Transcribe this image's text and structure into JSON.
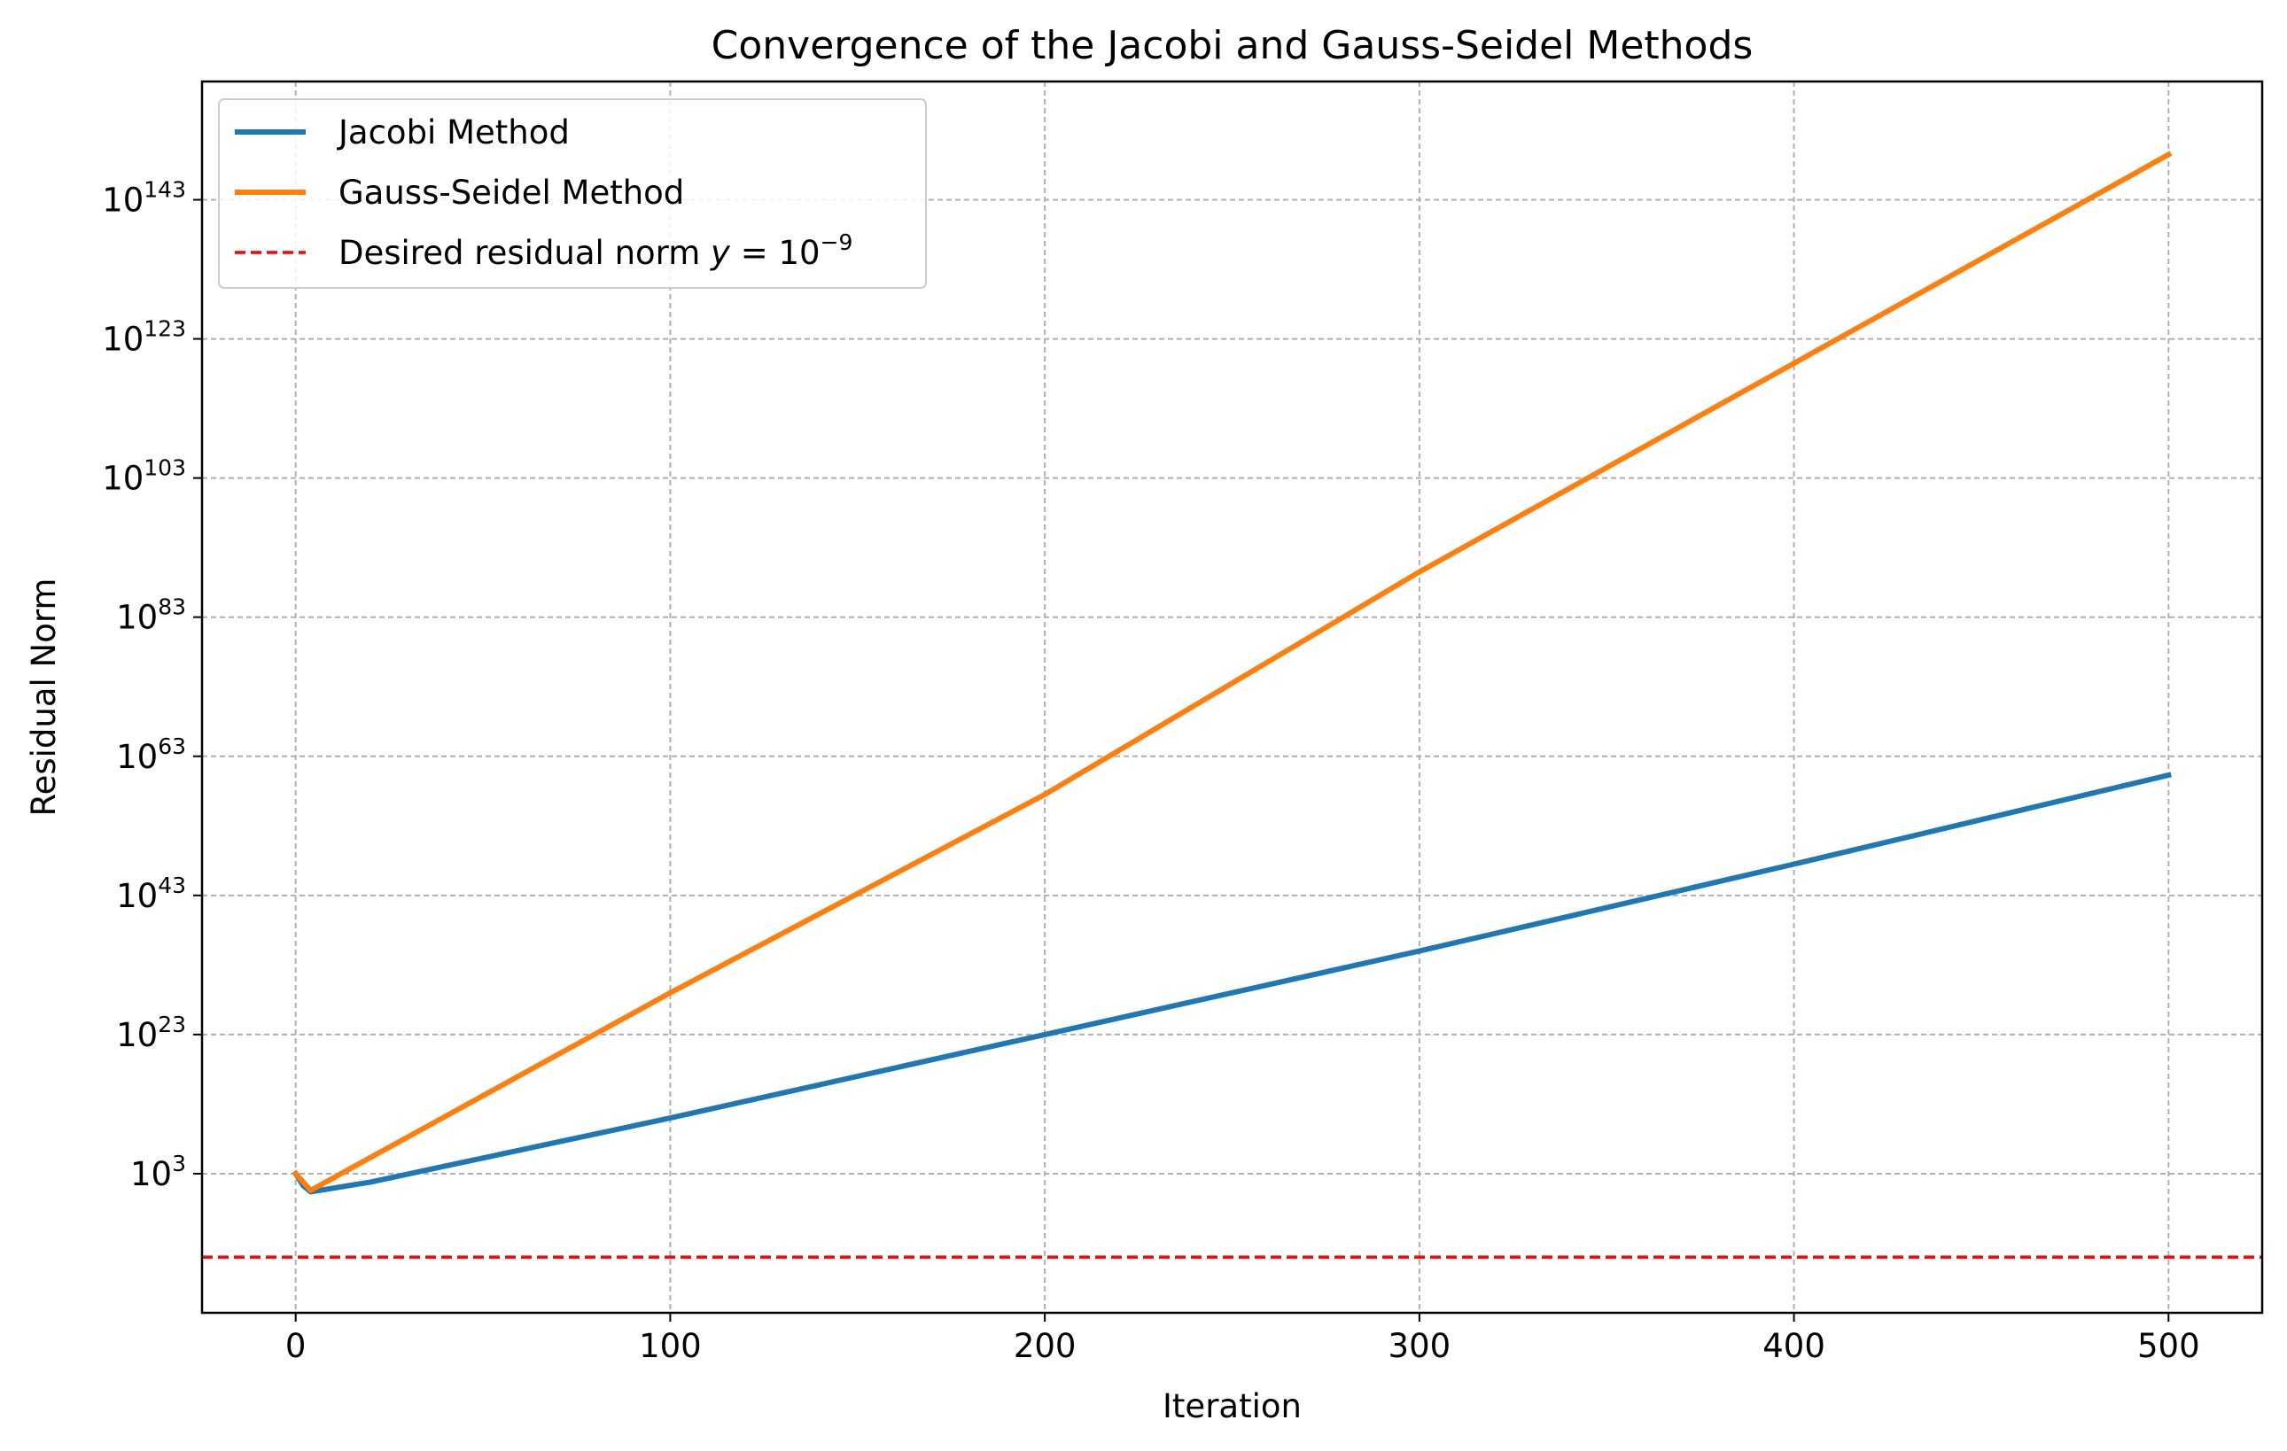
{
  "chart_data": {
    "type": "line",
    "title": "Convergence of the Jacobi and Gauss-Seidel Methods",
    "xlabel": "Iteration",
    "ylabel": "Residual Norm",
    "xlim": [
      -25,
      525
    ],
    "ylog10lim": [
      -17,
      160
    ],
    "x_ticks": [
      "0",
      "100",
      "200",
      "300",
      "400",
      "500"
    ],
    "x_tick_values": [
      0,
      100,
      200,
      300,
      400,
      500
    ],
    "y_ticks": [
      {
        "base": "10",
        "exp": "3",
        "log10": 3
      },
      {
        "base": "10",
        "exp": "23",
        "log10": 23
      },
      {
        "base": "10",
        "exp": "43",
        "log10": 43
      },
      {
        "base": "10",
        "exp": "63",
        "log10": 63
      },
      {
        "base": "10",
        "exp": "83",
        "log10": 83
      },
      {
        "base": "10",
        "exp": "103",
        "log10": 103
      },
      {
        "base": "10",
        "exp": "123",
        "log10": 123
      },
      {
        "base": "10",
        "exp": "143",
        "log10": 143
      }
    ],
    "scale_y": "log",
    "grid": true,
    "legend_position": "top-left",
    "series": [
      {
        "name": "Jacobi Method",
        "color": "#1f77b4",
        "style": "solid",
        "points": [
          {
            "x": 0,
            "log10_y": 3.0
          },
          {
            "x": 2,
            "log10_y": 1.3
          },
          {
            "x": 4,
            "log10_y": 0.4
          },
          {
            "x": 20,
            "log10_y": 1.8
          },
          {
            "x": 100,
            "log10_y": 11.0
          },
          {
            "x": 200,
            "log10_y": 23.0
          },
          {
            "x": 300,
            "log10_y": 35.0
          },
          {
            "x": 400,
            "log10_y": 47.5
          },
          {
            "x": 500,
            "log10_y": 60.3
          }
        ]
      },
      {
        "name": "Gauss-Seidel Method",
        "color": "#ff7f0e",
        "style": "solid",
        "points": [
          {
            "x": 0,
            "log10_y": 3.0
          },
          {
            "x": 4,
            "log10_y": 0.6
          },
          {
            "x": 100,
            "log10_y": 29.0
          },
          {
            "x": 200,
            "log10_y": 57.5
          },
          {
            "x": 300,
            "log10_y": 89.5
          },
          {
            "x": 400,
            "log10_y": 119.5
          },
          {
            "x": 500,
            "log10_y": 149.5
          }
        ]
      }
    ],
    "reference_line": {
      "name_prefix": "Desired residual norm",
      "name_var": "y",
      "name_eq": " = 10",
      "name_exp": "−9",
      "color": "#ff0000",
      "style": "dashed",
      "log10_y": -9
    }
  }
}
